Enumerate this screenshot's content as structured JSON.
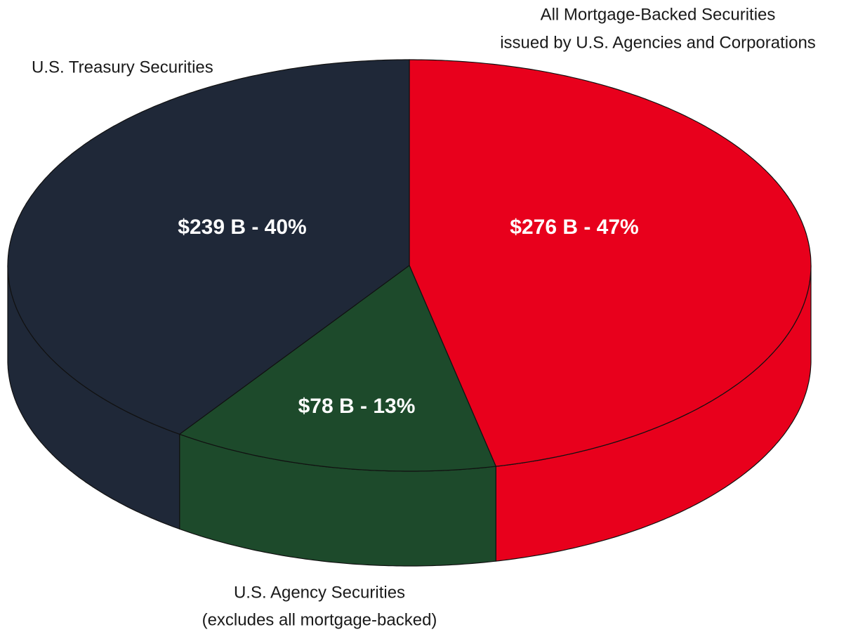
{
  "chart_data": {
    "type": "pie",
    "categories": [
      [
        "All Mortgage-Backed Securities",
        "issued by U.S. Agencies and Corporations"
      ],
      [
        "U.S. Agency Securities",
        "(excludes all mortgage-backed)"
      ],
      [
        "U.S. Treasury Securities"
      ]
    ],
    "values": [
      276,
      78,
      239
    ],
    "value_labels": [
      "$276 B - 47%",
      "$78 B - 13%",
      "$239 B - 40%"
    ],
    "colors": [
      "#e8001c",
      "#1d4a2b",
      "#1f2838"
    ]
  }
}
